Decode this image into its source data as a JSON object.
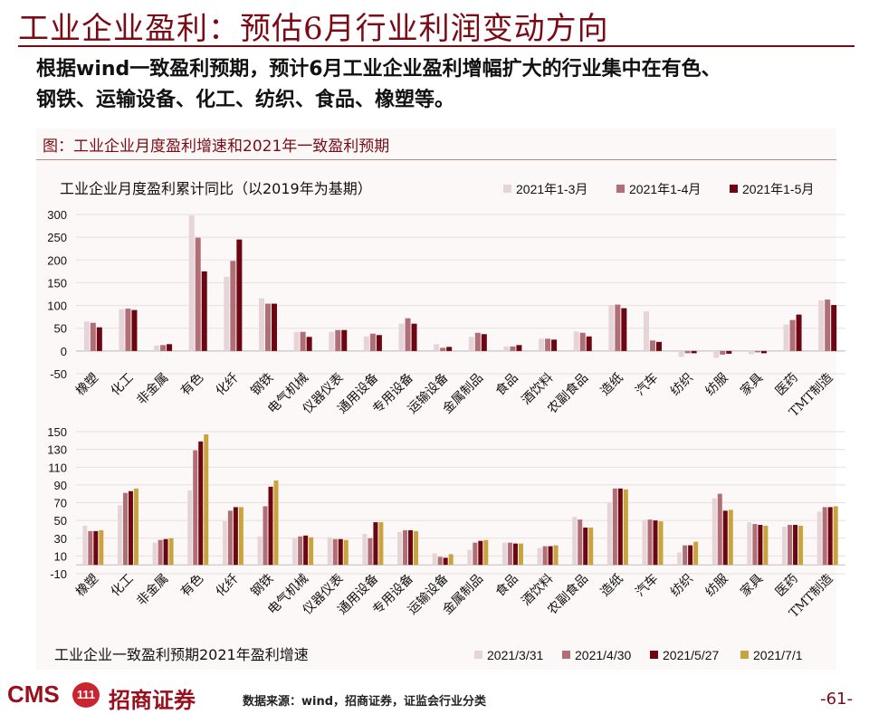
{
  "page": {
    "title": "工业企业盈利：预估6月行业利润变动方向",
    "lead_lines": [
      "根据wind一致盈利预期，预计6月工业企业盈利增幅扩大的行业集中在有色、",
      "钢铁、运输设备、化工、纺织、食品、橡塑等。"
    ],
    "figure_caption": "图：工业企业月度盈利增速和2021年一致盈利预期",
    "footer": {
      "logo_text": "CMS",
      "badge_text": "111",
      "brand_text": "招商证券",
      "source_text": "数据来源：wind，招商证券，证监会行业分类",
      "page_number": "-61-"
    }
  },
  "chart_data": [
    {
      "type": "bar",
      "title": "工业企业月度盈利累计同比（以2019年为基期）",
      "categories": [
        "橡塑",
        "化工",
        "非金属",
        "有色",
        "化纤",
        "钢铁",
        "电气机械",
        "仪器仪表",
        "通用设备",
        "专用设备",
        "运输设备",
        "金属制品",
        "食品",
        "酒饮料",
        "农副食品",
        "造纸",
        "汽车",
        "纺织",
        "纺服",
        "家具",
        "医药",
        "TMT制造"
      ],
      "ylim": [
        -50,
        300
      ],
      "yticks": [
        "300",
        "250",
        "200",
        "150",
        "100",
        "50",
        "0",
        "-50"
      ],
      "grid": true,
      "legend_position": "top-right",
      "series": [
        {
          "name": "2021年1-3月",
          "color": "#e6d5d8",
          "values": [
            65,
            92,
            12,
            298,
            163,
            116,
            42,
            42,
            32,
            60,
            15,
            31,
            10,
            27,
            43,
            101,
            87,
            -13,
            -15,
            -7,
            58,
            111
          ]
        },
        {
          "name": "2021年1-4月",
          "color": "#b06e76",
          "values": [
            62,
            93,
            13,
            249,
            198,
            104,
            42,
            46,
            38,
            72,
            7,
            40,
            10,
            27,
            40,
            102,
            23,
            -5,
            -8,
            -3,
            68,
            113
          ]
        },
        {
          "name": "2021年1-5月",
          "color": "#6b0612",
          "values": [
            52,
            90,
            15,
            175,
            245,
            104,
            31,
            46,
            35,
            60,
            9,
            37,
            13,
            25,
            32,
            94,
            20,
            -5,
            -6,
            -5,
            80,
            101
          ]
        }
      ]
    },
    {
      "type": "bar",
      "title": "工业企业一致盈利预期2021年盈利增速",
      "categories": [
        "橡塑",
        "化工",
        "非金属",
        "有色",
        "化纤",
        "钢铁",
        "电气机械",
        "仪器仪表",
        "通用设备",
        "专用设备",
        "运输设备",
        "金属制品",
        "食品",
        "酒饮料",
        "农副食品",
        "造纸",
        "汽车",
        "纺织",
        "纺服",
        "家具",
        "医药",
        "TMT制造"
      ],
      "ylim": [
        -10,
        150
      ],
      "yticks": [
        "150",
        "130",
        "110",
        "90",
        "70",
        "50",
        "30",
        "10",
        "-10"
      ],
      "grid": true,
      "legend_position": "bottom-right",
      "series": [
        {
          "name": "2021/3/31",
          "color": "#e6d5d8",
          "values": [
            44,
            67,
            25,
            84,
            49,
            32,
            30,
            31,
            35,
            37,
            13,
            17,
            25,
            19,
            54,
            70,
            50,
            14,
            75,
            48,
            43,
            60
          ]
        },
        {
          "name": "2021/4/30",
          "color": "#b06e76",
          "values": [
            38,
            81,
            28,
            129,
            61,
            66,
            32,
            29,
            30,
            39,
            9,
            25,
            25,
            21,
            51,
            86,
            51,
            22,
            80,
            46,
            45,
            65
          ]
        },
        {
          "name": "2021/5/27",
          "color": "#6b0612",
          "values": [
            38,
            83,
            29,
            139,
            65,
            88,
            33,
            29,
            48,
            39,
            8,
            27,
            24,
            21,
            42,
            86,
            50,
            22,
            61,
            45,
            45,
            65
          ]
        },
        {
          "name": "2021/7/1",
          "color": "#c9a43c",
          "values": [
            39,
            86,
            30,
            147,
            65,
            95,
            31,
            28,
            48,
            38,
            12,
            28,
            24,
            22,
            42,
            85,
            49,
            26,
            62,
            44,
            44,
            66
          ]
        }
      ]
    }
  ]
}
